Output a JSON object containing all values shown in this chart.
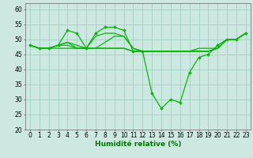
{
  "series": [
    {
      "x": [
        0,
        1,
        2,
        3,
        4,
        5,
        6,
        7,
        8,
        9,
        10,
        11,
        12,
        13,
        14,
        15,
        16,
        17,
        18,
        19,
        20,
        21,
        22,
        23
      ],
      "y": [
        48,
        47,
        47,
        48,
        53,
        52,
        47,
        52,
        54,
        54,
        53,
        46,
        46,
        32,
        27,
        30,
        29,
        39,
        44,
        45,
        48,
        50,
        50,
        52
      ],
      "marker": "D",
      "markersize": 1.8,
      "linewidth": 0.9
    },
    {
      "x": [
        0,
        1,
        2,
        3,
        4,
        5,
        6,
        7,
        8,
        9,
        10,
        11,
        12,
        13,
        14,
        15,
        16,
        17,
        18,
        19,
        20,
        21,
        22,
        23
      ],
      "y": [
        48,
        47,
        47,
        48,
        49,
        48,
        47,
        51,
        52,
        52,
        51,
        47,
        46,
        46,
        46,
        46,
        46,
        46,
        47,
        47,
        47,
        50,
        50,
        52
      ],
      "marker": null,
      "markersize": 0,
      "linewidth": 0.9
    },
    {
      "x": [
        0,
        1,
        2,
        3,
        4,
        5,
        6,
        7,
        8,
        9,
        10,
        11,
        12,
        13,
        14,
        15,
        16,
        17,
        18,
        19,
        20,
        21,
        22,
        23
      ],
      "y": [
        48,
        47,
        47,
        48,
        49,
        47,
        47,
        47,
        49,
        51,
        51,
        47,
        46,
        46,
        46,
        46,
        46,
        46,
        46,
        46,
        47,
        50,
        50,
        52
      ],
      "marker": null,
      "markersize": 0,
      "linewidth": 0.9
    },
    {
      "x": [
        0,
        1,
        2,
        3,
        4,
        5,
        6,
        7,
        8,
        9,
        10,
        11,
        12,
        13,
        14,
        15,
        16,
        17,
        18,
        19,
        20,
        21,
        22,
        23
      ],
      "y": [
        48,
        47,
        47,
        48,
        48,
        47,
        47,
        47,
        47,
        47,
        47,
        46,
        46,
        46,
        46,
        46,
        46,
        46,
        46,
        46,
        47,
        50,
        50,
        52
      ],
      "marker": null,
      "markersize": 0,
      "linewidth": 0.9
    },
    {
      "x": [
        0,
        1,
        2,
        3,
        4,
        5,
        6,
        7,
        8,
        9,
        10,
        11,
        12,
        13,
        14,
        15,
        16,
        17,
        18,
        19,
        20,
        21,
        22,
        23
      ],
      "y": [
        48,
        47,
        47,
        47,
        47,
        47,
        47,
        47,
        47,
        47,
        47,
        46,
        46,
        46,
        46,
        46,
        46,
        46,
        46,
        46,
        47,
        50,
        50,
        52
      ],
      "marker": null,
      "markersize": 0,
      "linewidth": 0.9
    }
  ],
  "line_color": "#00bb00",
  "xlabel": "Humidité relative (%)",
  "xlim": [
    -0.5,
    23.5
  ],
  "ylim": [
    20,
    62
  ],
  "yticks": [
    20,
    25,
    30,
    35,
    40,
    45,
    50,
    55,
    60
  ],
  "xticks": [
    0,
    1,
    2,
    3,
    4,
    5,
    6,
    7,
    8,
    9,
    10,
    11,
    12,
    13,
    14,
    15,
    16,
    17,
    18,
    19,
    20,
    21,
    22,
    23
  ],
  "grid_color": "#99ccbb",
  "bg_color": "#cce8e0",
  "xlabel_color": "#007700",
  "xlabel_fontsize": 6.5,
  "tick_fontsize": 5.5
}
